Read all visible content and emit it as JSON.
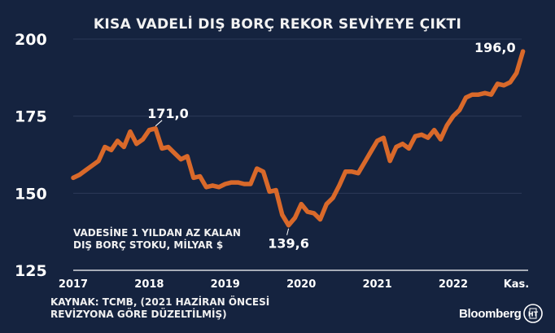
{
  "chart_data": {
    "type": "line",
    "title": "KISA VADELİ DIŞ BORÇ REKOR SEVİYEYE ÇIKTI",
    "note_lines": [
      "VADESİNE 1 YILDAN AZ KALAN",
      "DIŞ BORÇ STOKU, MİLYAR $"
    ],
    "xlabel": "",
    "ylabel": "",
    "x_ticks": [
      {
        "label": "2017",
        "x": 2017.0
      },
      {
        "label": "2018",
        "x": 2018.0
      },
      {
        "label": "2019",
        "x": 2019.0
      },
      {
        "label": "2020",
        "x": 2020.0
      },
      {
        "label": "2021",
        "x": 2021.0
      },
      {
        "label": "2022",
        "x": 2022.0
      },
      {
        "label": "Kas.",
        "x": 2022.83
      }
    ],
    "y_ticks": [
      125,
      150,
      175,
      200
    ],
    "xlim": [
      2017.0,
      2022.9
    ],
    "ylim": [
      125,
      200
    ],
    "series": [
      {
        "name": "Kısa vadeli dış borç stoku",
        "color": "#d9692a",
        "x": [
          2017.0,
          2017.083,
          2017.167,
          2017.25,
          2017.333,
          2017.417,
          2017.5,
          2017.583,
          2017.667,
          2017.75,
          2017.833,
          2017.917,
          2018.0,
          2018.083,
          2018.167,
          2018.25,
          2018.333,
          2018.417,
          2018.5,
          2018.583,
          2018.667,
          2018.75,
          2018.833,
          2018.917,
          2019.0,
          2019.083,
          2019.167,
          2019.25,
          2019.333,
          2019.417,
          2019.5,
          2019.583,
          2019.667,
          2019.75,
          2019.833,
          2019.917,
          2020.0,
          2020.083,
          2020.167,
          2020.25,
          2020.333,
          2020.417,
          2020.5,
          2020.583,
          2020.667,
          2020.75,
          2020.833,
          2020.917,
          2021.0,
          2021.083,
          2021.167,
          2021.25,
          2021.333,
          2021.417,
          2021.5,
          2021.583,
          2021.667,
          2021.75,
          2021.833,
          2021.917,
          2022.0,
          2022.083,
          2022.167,
          2022.25,
          2022.333,
          2022.417,
          2022.5,
          2022.583,
          2022.667,
          2022.75,
          2022.833
        ],
        "values": [
          155.0,
          156.0,
          157.5,
          159.0,
          160.5,
          165.0,
          164.0,
          167.0,
          165.0,
          170.0,
          166.0,
          167.5,
          170.5,
          171.0,
          164.5,
          165.0,
          163.0,
          161.0,
          162.0,
          155.0,
          155.5,
          152.0,
          152.5,
          152.0,
          153.0,
          153.5,
          153.5,
          153.0,
          153.0,
          158.0,
          157.0,
          150.5,
          151.0,
          143.0,
          139.6,
          142.0,
          146.5,
          144.0,
          143.5,
          141.5,
          146.5,
          148.5,
          152.5,
          157.0,
          157.0,
          156.5,
          160.0,
          163.5,
          167.0,
          168.0,
          160.5,
          165.0,
          166.0,
          164.5,
          168.5,
          169.0,
          168.0,
          170.5,
          167.5,
          172.0,
          175.0,
          177.0,
          181.0,
          182.0,
          182.0,
          182.5,
          182.0,
          185.5,
          185.0,
          186.0,
          189.0
        ]
      }
    ],
    "extra_points": [
      {
        "x": 2022.917,
        "value": 196.0
      }
    ],
    "annotations": [
      {
        "text": "171,0",
        "x": 2018.083,
        "value": 171.0
      },
      {
        "text": "139,6",
        "x": 2019.833,
        "value": 139.6
      },
      {
        "text": "196,0",
        "x": 2022.917,
        "value": 196.0
      }
    ]
  },
  "footer": {
    "source_lines": [
      "KAYNAK: TCMB, (2021 HAZİRAN ÖNCESİ",
      "REVİZYONA GÖRE DÜZELTİLMİŞ)"
    ],
    "brand": "Bloomberg",
    "logo_text": "HT"
  }
}
